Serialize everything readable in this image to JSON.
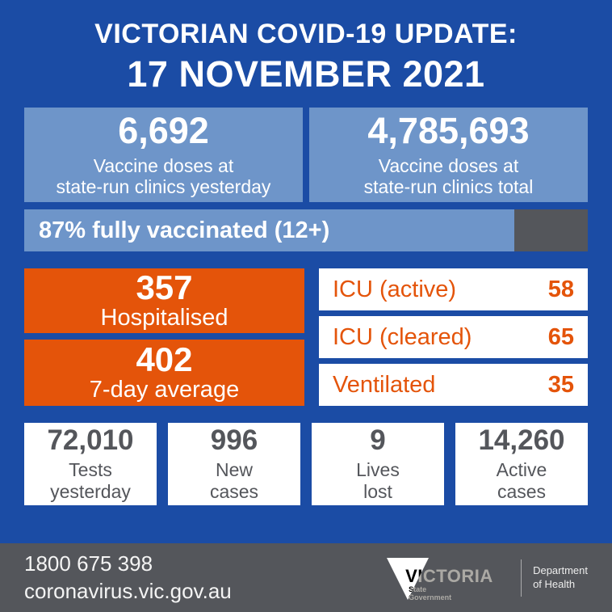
{
  "header": {
    "title_line1": "VICTORIAN COVID-19 UPDATE:",
    "title_line2": "17 NOVEMBER 2021"
  },
  "vaccine_boxes": [
    {
      "value": "6,692",
      "label_line1": "Vaccine doses at",
      "label_line2": "state-run clinics yesterday"
    },
    {
      "value": "4,785,693",
      "label_line1": "Vaccine doses at",
      "label_line2": "state-run clinics total"
    }
  ],
  "vaccination_bar": {
    "label": "87% fully vaccinated (12+)",
    "percent": 87
  },
  "hospital_boxes": [
    {
      "value": "357",
      "label": "Hospitalised"
    },
    {
      "value": "402",
      "label": "7-day average"
    }
  ],
  "icu_rows": [
    {
      "label": "ICU (active)",
      "value": "58"
    },
    {
      "label": "ICU (cleared)",
      "value": "65"
    },
    {
      "label": "Ventilated",
      "value": "35"
    }
  ],
  "stat_boxes": [
    {
      "value": "72,010",
      "label_line1": "Tests",
      "label_line2": "yesterday"
    },
    {
      "value": "996",
      "label_line1": "New",
      "label_line2": "cases"
    },
    {
      "value": "9",
      "label_line1": "Lives",
      "label_line2": "lost"
    },
    {
      "value": "14,260",
      "label_line1": "Active",
      "label_line2": "cases"
    }
  ],
  "footer": {
    "phone": "1800 675 398",
    "url": "coronavirus.vic.gov.au",
    "logo_text": "VICTORIA",
    "logo_sub_line1": "State",
    "logo_sub_line2": "Government",
    "department_line1": "Department",
    "department_line2": "of Health"
  },
  "colors": {
    "background_blue": "#1B4CA5",
    "light_blue": "#6E95C9",
    "orange": "#E4540A",
    "dark_gray": "#54565B",
    "white": "#FFFFFF"
  },
  "chart_data": {
    "type": "table",
    "title": "Victorian COVID-19 Update: 17 November 2021",
    "metrics": [
      {
        "label": "Vaccine doses at state-run clinics yesterday",
        "value": 6692
      },
      {
        "label": "Vaccine doses at state-run clinics total",
        "value": 4785693
      },
      {
        "label": "Fully vaccinated (12+) %",
        "value": 87
      },
      {
        "label": "Hospitalised",
        "value": 357
      },
      {
        "label": "Hospitalised 7-day average",
        "value": 402
      },
      {
        "label": "ICU (active)",
        "value": 58
      },
      {
        "label": "ICU (cleared)",
        "value": 65
      },
      {
        "label": "Ventilated",
        "value": 35
      },
      {
        "label": "Tests yesterday",
        "value": 72010
      },
      {
        "label": "New cases",
        "value": 996
      },
      {
        "label": "Lives lost",
        "value": 9
      },
      {
        "label": "Active cases",
        "value": 14260
      }
    ]
  }
}
